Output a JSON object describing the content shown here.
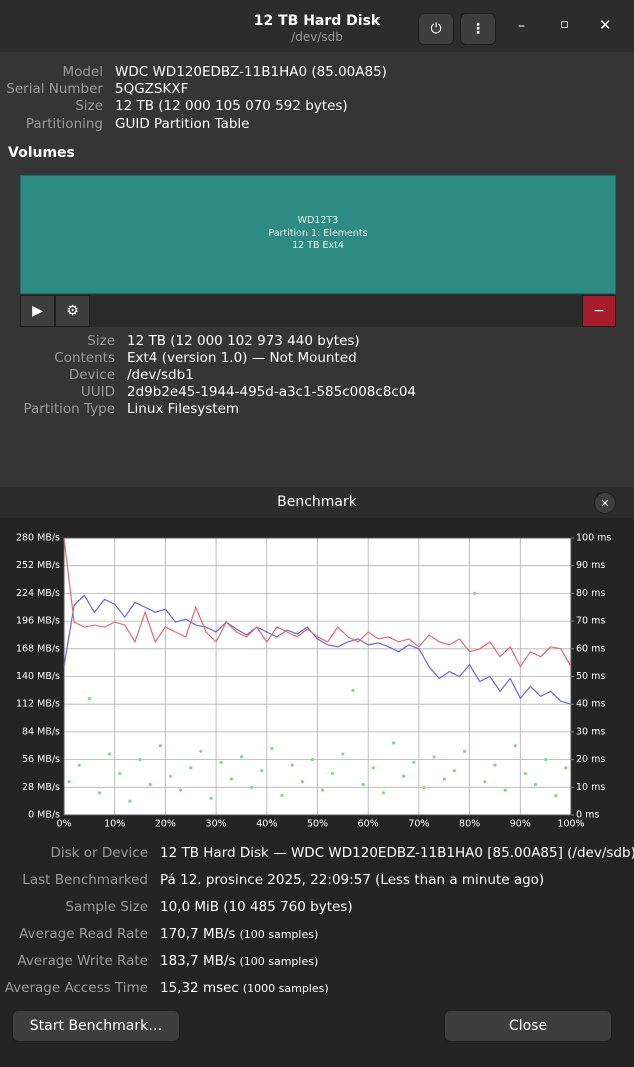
{
  "header": {
    "title": "12 TB Hard Disk",
    "subtitle": "/dev/sdb"
  },
  "disk": {
    "rows": [
      {
        "label": "Model",
        "value": "WDC WD120EDBZ-11B1HA0 (85.00A85)"
      },
      {
        "label": "Serial Number",
        "value": "5QGZSKXF"
      },
      {
        "label": "Size",
        "value": "12 TB (12 000 105 070 592 bytes)"
      },
      {
        "label": "Partitioning",
        "value": "GUID Partition Table"
      }
    ]
  },
  "volumes": {
    "heading": "Volumes",
    "partition": {
      "name": "WD12T3",
      "label": "Partition 1: Elements",
      "size": "12 TB Ext4"
    },
    "rows": [
      {
        "label": "Size",
        "value": "12 TB (12 000 102 973 440 bytes)"
      },
      {
        "label": "Contents",
        "value": "Ext4 (version 1.0) — Not Mounted"
      },
      {
        "label": "Device",
        "value": "/dev/sdb1"
      },
      {
        "label": "UUID",
        "value": "2d9b2e45-1944-495d-a3c1-585c008c8c04"
      },
      {
        "label": "Partition Type",
        "value": "Linux Filesystem"
      }
    ]
  },
  "benchmark": {
    "title": "Benchmark",
    "chart_data": {
      "type": "line",
      "xlim": [
        0,
        100
      ],
      "ylim": [
        0,
        280
      ],
      "y2lim": [
        0,
        100
      ],
      "xticks": [
        {
          "value": 0,
          "label": "0%"
        },
        {
          "value": 10,
          "label": "10%"
        },
        {
          "value": 20,
          "label": "20%"
        },
        {
          "value": 30,
          "label": "30%"
        },
        {
          "value": 40,
          "label": "40%"
        },
        {
          "value": 50,
          "label": "50%"
        },
        {
          "value": 60,
          "label": "60%"
        },
        {
          "value": 70,
          "label": "70%"
        },
        {
          "value": 80,
          "label": "80%"
        },
        {
          "value": 90,
          "label": "90%"
        },
        {
          "value": 100,
          "label": "100%"
        }
      ],
      "yticks": [
        {
          "value": 0,
          "label": "0 MB/s"
        },
        {
          "value": 28,
          "label": "28 MB/s"
        },
        {
          "value": 56,
          "label": "56 MB/s"
        },
        {
          "value": 84,
          "label": "84 MB/s"
        },
        {
          "value": 112,
          "label": "112 MB/s"
        },
        {
          "value": 140,
          "label": "140 MB/s"
        },
        {
          "value": 168,
          "label": "168 MB/s"
        },
        {
          "value": 196,
          "label": "196 MB/s"
        },
        {
          "value": 224,
          "label": "224 MB/s"
        },
        {
          "value": 252,
          "label": "252 MB/s"
        },
        {
          "value": 280,
          "label": "280 MB/s"
        }
      ],
      "y2ticks": [
        {
          "value": 0,
          "label": "0 ms"
        },
        {
          "value": 10,
          "label": "10 ms"
        },
        {
          "value": 20,
          "label": "20 ms"
        },
        {
          "value": 30,
          "label": "30 ms"
        },
        {
          "value": 40,
          "label": "40 ms"
        },
        {
          "value": 50,
          "label": "50 ms"
        },
        {
          "value": 60,
          "label": "60 ms"
        },
        {
          "value": 70,
          "label": "70 ms"
        },
        {
          "value": 80,
          "label": "80 ms"
        },
        {
          "value": 90,
          "label": "90 ms"
        },
        {
          "value": 100,
          "label": "100 ms"
        }
      ],
      "grid": true,
      "x": [
        0,
        2,
        4,
        6,
        8,
        10,
        12,
        14,
        16,
        18,
        20,
        22,
        24,
        26,
        28,
        30,
        32,
        34,
        36,
        38,
        40,
        42,
        44,
        46,
        48,
        50,
        52,
        54,
        56,
        58,
        60,
        62,
        64,
        66,
        68,
        70,
        72,
        74,
        76,
        78,
        80,
        82,
        84,
        86,
        88,
        90,
        92,
        94,
        96,
        98,
        100
      ],
      "series": [
        {
          "color": "#6a6ae0",
          "values": [
            150,
            212,
            222,
            205,
            218,
            213,
            200,
            215,
            210,
            205,
            208,
            195,
            198,
            192,
            190,
            185,
            195,
            188,
            182,
            190,
            185,
            180,
            187,
            183,
            190,
            178,
            172,
            170,
            175,
            178,
            172,
            174,
            170,
            165,
            172,
            168,
            150,
            138,
            145,
            140,
            152,
            135,
            140,
            125,
            138,
            118,
            130,
            120,
            125,
            115,
            112
          ]
        },
        {
          "color": "#e86a72",
          "values": [
            280,
            195,
            190,
            192,
            190,
            195,
            192,
            175,
            205,
            175,
            190,
            185,
            180,
            210,
            185,
            175,
            195,
            185,
            180,
            190,
            175,
            190,
            185,
            180,
            188,
            180,
            175,
            190,
            180,
            175,
            185,
            178,
            180,
            175,
            178,
            170,
            182,
            175,
            172,
            178,
            165,
            168,
            175,
            160,
            170,
            150,
            165,
            160,
            170,
            168,
            150
          ]
        },
        {
          "type": "scatter",
          "axis": "y2",
          "color": "#7be07b",
          "x": [
            1,
            3,
            5,
            7,
            9,
            11,
            13,
            15,
            17,
            19,
            21,
            23,
            25,
            27,
            29,
            31,
            33,
            35,
            37,
            39,
            41,
            43,
            45,
            47,
            49,
            51,
            53,
            55,
            57,
            59,
            61,
            63,
            65,
            67,
            69,
            71,
            73,
            75,
            77,
            79,
            81,
            83,
            85,
            87,
            89,
            91,
            93,
            95,
            97,
            99
          ],
          "values": [
            12,
            18,
            42,
            8,
            22,
            15,
            5,
            20,
            11,
            25,
            14,
            9,
            17,
            23,
            6,
            19,
            13,
            21,
            10,
            16,
            24,
            7,
            18,
            12,
            20,
            9,
            15,
            22,
            45,
            11,
            17,
            8,
            26,
            14,
            19,
            10,
            21,
            13,
            16,
            23,
            80,
            12,
            18,
            9,
            25,
            15,
            11,
            20,
            7,
            17
          ]
        }
      ]
    },
    "rows": [
      {
        "label": "Disk or Device",
        "value": "12 TB Hard Disk — WDC WD120EDBZ-11B1HA0 [85.00A85] (/dev/sdb)"
      },
      {
        "label": "Last Benchmarked",
        "value": "Pá 12. prosince 2025, 22:09:57 (Less than a minute ago)"
      },
      {
        "label": "Sample Size",
        "value": "10,0 MiB (10 485 760 bytes)"
      },
      {
        "label": "Average Read Rate",
        "value": "170,7 MB/s",
        "note": "(100 samples)"
      },
      {
        "label": "Average Write Rate",
        "value": "183,7 MB/s",
        "note": "(100 samples)"
      },
      {
        "label": "Average Access Time",
        "value": "15,32 msec",
        "note": "(1000 samples)"
      }
    ],
    "buttons": {
      "start": "Start Benchmark…",
      "close": "Close"
    }
  }
}
